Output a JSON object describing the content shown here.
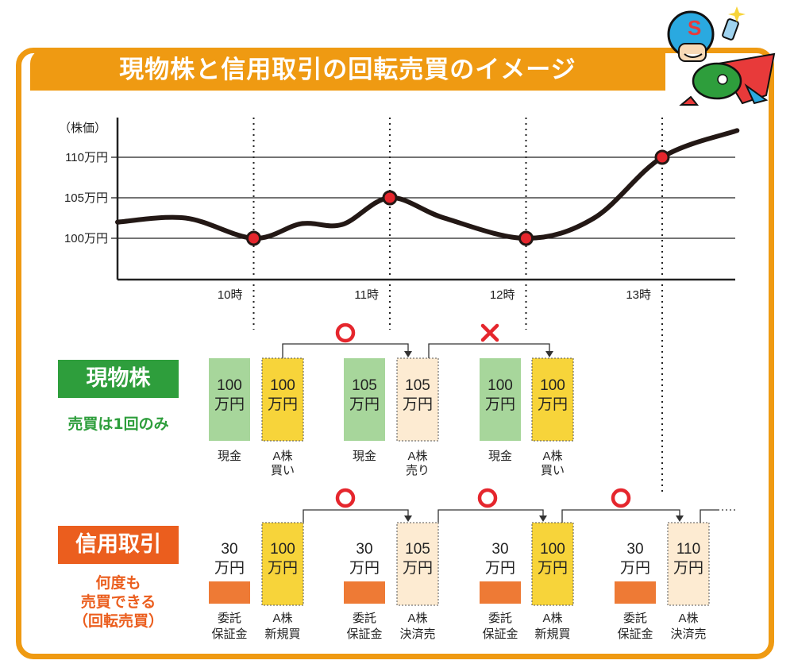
{
  "title": "現物株と信用取引の回転売買のイメージ",
  "chart_data": {
    "type": "line",
    "ylabel": "（株価）",
    "ytick_labels": [
      "110万円",
      "105万円",
      "100万円"
    ],
    "xtick_labels": [
      "10時",
      "11時",
      "12時",
      "13時"
    ],
    "ylim": [
      95,
      114
    ],
    "gridlines": [
      110,
      105,
      100
    ],
    "points": [
      {
        "x": 0,
        "y": 102
      },
      {
        "x": 0.5,
        "y": 102.5
      },
      {
        "x": 1,
        "y": 100
      },
      {
        "x": 1.35,
        "y": 101.8
      },
      {
        "x": 1.65,
        "y": 101.7
      },
      {
        "x": 2,
        "y": 105
      },
      {
        "x": 2.4,
        "y": 102.5
      },
      {
        "x": 3,
        "y": 100
      },
      {
        "x": 3.5,
        "y": 102.5
      },
      {
        "x": 4,
        "y": 110
      },
      {
        "x": 4.55,
        "y": 113.3
      }
    ],
    "markers": [
      {
        "x": 1,
        "y": 100
      },
      {
        "x": 2,
        "y": 105
      },
      {
        "x": 3,
        "y": 100
      },
      {
        "x": 4,
        "y": 110
      }
    ],
    "grid": true
  },
  "genbutsu": {
    "label": "現物株",
    "note": "売買は1回のみ",
    "marks": [
      "○",
      "×"
    ],
    "boxes": [
      {
        "value": "100\n万円",
        "label": "現金",
        "style": "cash"
      },
      {
        "value": "100\n万円",
        "label": "A株\n買い",
        "style": "stock"
      },
      {
        "value": "105\n万円",
        "label": "現金",
        "style": "cash"
      },
      {
        "value": "105\n万円",
        "label": "A株\n売り",
        "style": "sell"
      },
      {
        "value": "100\n万円",
        "label": "現金",
        "style": "cash"
      },
      {
        "value": "100\n万円",
        "label": "A株\n買い",
        "style": "stock"
      }
    ]
  },
  "shinyo": {
    "label": "信用取引",
    "note_lines": [
      "何度も",
      "売買できる",
      "（回転売買）"
    ],
    "marks": [
      "○",
      "○",
      "○"
    ],
    "groups": [
      {
        "margin_value": "30\n万円",
        "margin_label": "委託\n保証金",
        "stock_value": "100\n万円",
        "stock_label": "A株\n新規買",
        "style": "stock"
      },
      {
        "margin_value": "30\n万円",
        "margin_label": "委託\n保証金",
        "stock_value": "105\n万円",
        "stock_label": "A株\n決済売",
        "style": "sell"
      },
      {
        "margin_value": "30\n万円",
        "margin_label": "委託\n保証金",
        "stock_value": "100\n万円",
        "stock_label": "A株\n新規買",
        "style": "stock"
      },
      {
        "margin_value": "30\n万円",
        "margin_label": "委託\n保証金",
        "stock_value": "110\n万円",
        "stock_label": "A株\n決済売",
        "style": "sell"
      }
    ]
  },
  "colors": {
    "frame": "#ef9a12",
    "cash": "#a7d69b",
    "stock": "#f7d43a",
    "sell": "#fdebd2",
    "margin": "#ee7a35",
    "green": "#2e9e3c",
    "orange": "#eb5e1e",
    "marker": "#e5262d"
  },
  "mascot": {
    "icon": "superhero-mascot-icon"
  }
}
